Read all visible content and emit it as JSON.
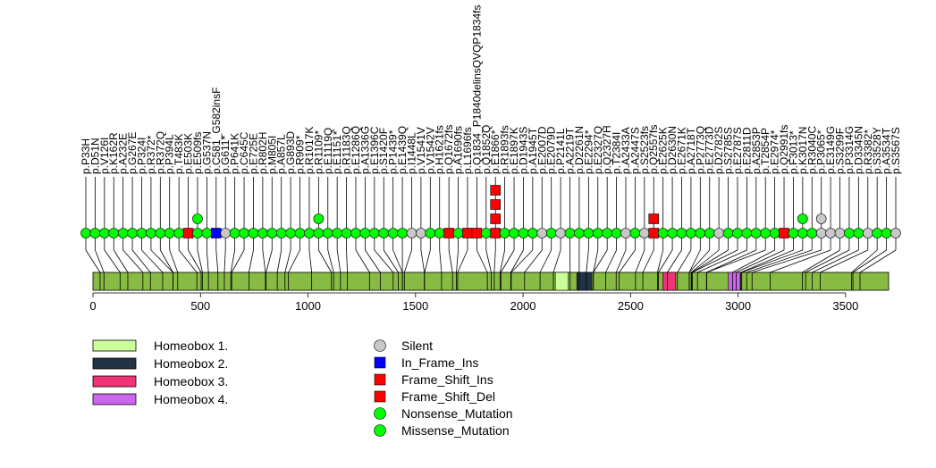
{
  "chart_data": {
    "type": "lollipop",
    "axis": {
      "min": 0,
      "max": 3700,
      "ticks": [
        0,
        500,
        1000,
        1500,
        2000,
        2500,
        3000,
        3500
      ]
    },
    "protein_bar": {
      "start": 0,
      "end": 3700,
      "color": "#88bb44"
    },
    "domains": [
      {
        "name": "Homeobox 1.",
        "start": 2150,
        "end": 2210,
        "color": "#ccff99"
      },
      {
        "name": "Homeobox 2.",
        "start": 2250,
        "end": 2320,
        "color": "#223344"
      },
      {
        "name": "Homeobox 3.",
        "start": 2650,
        "end": 2710,
        "color": "#ee3377"
      },
      {
        "name": "Homeobox 4.",
        "start": 2955,
        "end": 3010,
        "color": "#cc66ee"
      }
    ],
    "legend_types": [
      {
        "name": "Silent",
        "shape": "circle",
        "color": "#c8c8c8"
      },
      {
        "name": "In_Frame_Ins",
        "shape": "square",
        "color": "#0000ff"
      },
      {
        "name": "Frame_Shift_Ins",
        "shape": "square",
        "color": "#ff0000"
      },
      {
        "name": "Frame_Shift_Del",
        "shape": "square",
        "color": "#ff0000"
      },
      {
        "name": "Nonsense_Mutation",
        "shape": "circle",
        "color": "#00ff00"
      },
      {
        "name": "Missense_Mutation",
        "shape": "circle",
        "color": "#00ff00"
      }
    ],
    "colors": {
      "silent": "#c8c8c8",
      "inframe": "#0000ff",
      "frameshift": "#ff0000",
      "mutation": "#00ff00",
      "line": "#000000"
    },
    "mutations": [
      {
        "label": "p.P33H",
        "pos": 33,
        "markers": [
          "m"
        ]
      },
      {
        "label": "p.D51N",
        "pos": 51,
        "markers": [
          "m"
        ]
      },
      {
        "label": "p.V126I",
        "pos": 126,
        "markers": [
          "m"
        ]
      },
      {
        "label": "p.K162R",
        "pos": 162,
        "markers": [
          "m"
        ]
      },
      {
        "label": "p.A232E",
        "pos": 232,
        "markers": [
          "m"
        ]
      },
      {
        "label": "p.G267E",
        "pos": 267,
        "markers": [
          "m"
        ]
      },
      {
        "label": "p.P324I",
        "pos": 324,
        "markers": [
          "m"
        ]
      },
      {
        "label": "p.R372*",
        "pos": 372,
        "markers": [
          "m"
        ]
      },
      {
        "label": "p.R372Q",
        "pos": 372,
        "markers": [
          "m"
        ]
      },
      {
        "label": "p.P394L",
        "pos": 394,
        "markers": [
          "m"
        ]
      },
      {
        "label": "p.T483K",
        "pos": 483,
        "markers": [
          "m"
        ]
      },
      {
        "label": "p.E503K",
        "pos": 503,
        "markers": [
          "fs"
        ]
      },
      {
        "label": "p.E509fs",
        "pos": 509,
        "markers": [
          "m",
          "m"
        ]
      },
      {
        "label": "p.G537N",
        "pos": 537,
        "markers": [
          "m"
        ]
      },
      {
        "label": "p.C581_G582insF",
        "pos": 581,
        "markers": [
          "if"
        ]
      },
      {
        "label": "p.G611*",
        "pos": 611,
        "markers": [
          "s"
        ]
      },
      {
        "label": "p.P641K",
        "pos": 641,
        "markers": [
          "m"
        ]
      },
      {
        "label": "p.C645C",
        "pos": 645,
        "markers": [
          "m"
        ]
      },
      {
        "label": "p.E725E",
        "pos": 725,
        "markers": [
          "m"
        ]
      },
      {
        "label": "p.R802H",
        "pos": 802,
        "markers": [
          "m"
        ]
      },
      {
        "label": "p.M805I",
        "pos": 805,
        "markers": [
          "m"
        ]
      },
      {
        "label": "p.A857L",
        "pos": 857,
        "markers": [
          "m"
        ]
      },
      {
        "label": "p.G893D",
        "pos": 893,
        "markers": [
          "m"
        ]
      },
      {
        "label": "p.R909*",
        "pos": 909,
        "markers": [
          "m"
        ]
      },
      {
        "label": "p.R1017K",
        "pos": 1017,
        "markers": [
          "m"
        ]
      },
      {
        "label": "p.R1109*",
        "pos": 1109,
        "markers": [
          "m",
          "m"
        ]
      },
      {
        "label": "p.E1119Q",
        "pos": 1119,
        "markers": [
          "m"
        ]
      },
      {
        "label": "p.E1151*",
        "pos": 1151,
        "markers": [
          "m"
        ]
      },
      {
        "label": "p.R1183Q",
        "pos": 1183,
        "markers": [
          "m"
        ]
      },
      {
        "label": "p.E1286Q",
        "pos": 1286,
        "markers": [
          "m"
        ]
      },
      {
        "label": "p.A1336G",
        "pos": 1336,
        "markers": [
          "m"
        ]
      },
      {
        "label": "p.E1396C",
        "pos": 1396,
        "markers": [
          "m"
        ]
      },
      {
        "label": "p.S1420F",
        "pos": 1420,
        "markers": [
          "m"
        ]
      },
      {
        "label": "p.P1439*",
        "pos": 1439,
        "markers": [
          "m"
        ]
      },
      {
        "label": "p.E1439Q",
        "pos": 1439,
        "markers": [
          "m"
        ]
      },
      {
        "label": "p.I1448L",
        "pos": 1448,
        "markers": [
          "s"
        ]
      },
      {
        "label": "p.V1541V",
        "pos": 1541,
        "markers": [
          "s"
        ]
      },
      {
        "label": "p.V1542V",
        "pos": 1542,
        "markers": [
          "m"
        ]
      },
      {
        "label": "p.H1621fs",
        "pos": 1621,
        "markers": [
          "m"
        ]
      },
      {
        "label": "p.Q1672fs",
        "pos": 1672,
        "markers": [
          "fs"
        ]
      },
      {
        "label": "p.A1690fs",
        "pos": 1690,
        "markers": [
          "m"
        ]
      },
      {
        "label": "p.L1696fs",
        "pos": 1696,
        "markers": [
          "fs"
        ]
      },
      {
        "label": "p.Q1834_P1840delinsQVQP1834fs",
        "pos": 1834,
        "markers": [
          "fs"
        ]
      },
      {
        "label": "p.Q1852Q",
        "pos": 1852,
        "markers": [
          "m"
        ]
      },
      {
        "label": "p.E1866*",
        "pos": 1866,
        "markers": [
          "fs",
          "fs",
          "fs",
          "fs"
        ]
      },
      {
        "label": "p.R1893fs",
        "pos": 1893,
        "markers": [
          "m"
        ]
      },
      {
        "label": "p.E1897K",
        "pos": 1897,
        "markers": [
          "m"
        ]
      },
      {
        "label": "p.D1943S",
        "pos": 1943,
        "markers": [
          "m"
        ]
      },
      {
        "label": "p.A1945T",
        "pos": 1945,
        "markers": [
          "m"
        ]
      },
      {
        "label": "p.E2007D",
        "pos": 2007,
        "markers": [
          "s"
        ]
      },
      {
        "label": "p.E2079D",
        "pos": 2079,
        "markers": [
          "m"
        ]
      },
      {
        "label": "p.P2141L",
        "pos": 2141,
        "markers": [
          "s"
        ]
      },
      {
        "label": "p.A2219T",
        "pos": 2219,
        "markers": [
          "m"
        ]
      },
      {
        "label": "p.D2261N",
        "pos": 2261,
        "markers": [
          "m"
        ]
      },
      {
        "label": "p.E2294*",
        "pos": 2294,
        "markers": [
          "m"
        ]
      },
      {
        "label": "p.E2327Q",
        "pos": 2327,
        "markers": [
          "m"
        ]
      },
      {
        "label": "p.Q2327H",
        "pos": 2327,
        "markers": [
          "m"
        ]
      },
      {
        "label": "p.T2384I",
        "pos": 2384,
        "markers": [
          "m"
        ]
      },
      {
        "label": "p.A2433A",
        "pos": 2433,
        "markers": [
          "s"
        ]
      },
      {
        "label": "p.A2447S",
        "pos": 2447,
        "markers": [
          "m"
        ]
      },
      {
        "label": "p.S2523fs",
        "pos": 2523,
        "markers": [
          "s"
        ]
      },
      {
        "label": "p.Q2557fs",
        "pos": 2557,
        "markers": [
          "fs",
          "fs"
        ]
      },
      {
        "label": "p.E2625K",
        "pos": 2625,
        "markers": [
          "m"
        ]
      },
      {
        "label": "p.D2630N",
        "pos": 2630,
        "markers": [
          "m"
        ]
      },
      {
        "label": "p.E2671K",
        "pos": 2671,
        "markers": [
          "m"
        ]
      },
      {
        "label": "p.A2718T",
        "pos": 2718,
        "markers": [
          "m"
        ]
      },
      {
        "label": "p.P2773Q",
        "pos": 2773,
        "markers": [
          "m"
        ]
      },
      {
        "label": "p.E2773D",
        "pos": 2773,
        "markers": [
          "m"
        ]
      },
      {
        "label": "p.D2782S",
        "pos": 2782,
        "markers": [
          "s"
        ]
      },
      {
        "label": "p.S2785S",
        "pos": 2785,
        "markers": [
          "m"
        ]
      },
      {
        "label": "p.E2787S",
        "pos": 2787,
        "markers": [
          "m"
        ]
      },
      {
        "label": "p.E2811D",
        "pos": 2811,
        "markers": [
          "m"
        ]
      },
      {
        "label": "p.A2853P",
        "pos": 2853,
        "markers": [
          "m"
        ]
      },
      {
        "label": "p.T2854P",
        "pos": 2854,
        "markers": [
          "m"
        ]
      },
      {
        "label": "p.E2974*",
        "pos": 2974,
        "markers": [
          "m"
        ]
      },
      {
        "label": "p.Q2991fs",
        "pos": 2991,
        "markers": [
          "fs"
        ]
      },
      {
        "label": "p.F3013*",
        "pos": 3013,
        "markers": [
          "m"
        ]
      },
      {
        "label": "p.K3017N",
        "pos": 3017,
        "markers": [
          "m",
          "m"
        ]
      },
      {
        "label": "p.R3040C",
        "pos": 3040,
        "markers": [
          "m"
        ]
      },
      {
        "label": "p.P3065*",
        "pos": 3065,
        "markers": [
          "s",
          "s"
        ]
      },
      {
        "label": "p.E3149G",
        "pos": 3149,
        "markers": [
          "s"
        ]
      },
      {
        "label": "p.S3299F",
        "pos": 3299,
        "markers": [
          "s"
        ]
      },
      {
        "label": "p.P3314G",
        "pos": 3314,
        "markers": [
          "m"
        ]
      },
      {
        "label": "p.D3345N",
        "pos": 3345,
        "markers": [
          "m"
        ]
      },
      {
        "label": "p.R3382*",
        "pos": 3382,
        "markers": [
          "s"
        ]
      },
      {
        "label": "p.S3528Y",
        "pos": 3528,
        "markers": [
          "m"
        ]
      },
      {
        "label": "p.A3534T",
        "pos": 3534,
        "markers": [
          "m"
        ]
      },
      {
        "label": "p.S3567S",
        "pos": 3567,
        "markers": [
          "s"
        ]
      }
    ]
  }
}
